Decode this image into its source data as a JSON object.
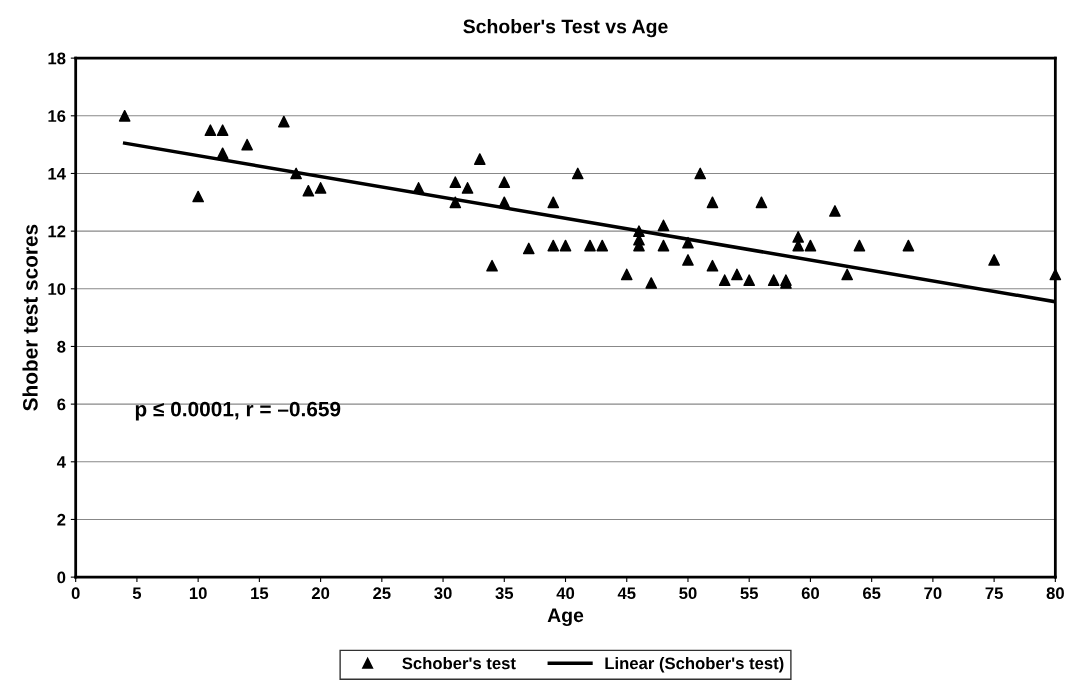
{
  "chart_data": {
    "type": "scatter",
    "title": "Schober's Test vs Age",
    "xlabel": "Age",
    "ylabel": "Shober test scores",
    "series": [
      {
        "name": "Schober's test",
        "color": "#000000",
        "marker": "triangle",
        "x": [
          4,
          10,
          11,
          12,
          12,
          14,
          17,
          18,
          19,
          20,
          28,
          31,
          31,
          32,
          33,
          34,
          35,
          35,
          37,
          39,
          39,
          40,
          41,
          42,
          43,
          45,
          46,
          46,
          46,
          47,
          48,
          48,
          50,
          50,
          51,
          52,
          52,
          53,
          54,
          55,
          56,
          57,
          58,
          58,
          59,
          59,
          60,
          62,
          63,
          64,
          68,
          75,
          80
        ],
        "values": [
          16,
          13.2,
          15.5,
          15.5,
          14.7,
          15,
          15.8,
          14,
          13.4,
          13.5,
          13.5,
          13.7,
          13,
          13.5,
          14.5,
          10.8,
          13.7,
          13,
          11.4,
          13,
          11.5,
          11.5,
          14,
          11.5,
          11.5,
          10.5,
          12,
          11.7,
          11.5,
          10.2,
          12.2,
          11.5,
          11.6,
          11,
          14,
          13,
          10.8,
          10.3,
          10.5,
          10.3,
          13,
          10.3,
          10.3,
          10.2,
          11.8,
          11.5,
          11.5,
          12.7,
          10.5,
          11.5,
          11.5,
          11,
          10.5
        ]
      },
      {
        "name": "Linear (Schober's test)",
        "type": "line",
        "color": "#000000",
        "marker": "none",
        "line_style": "solid",
        "x": [
          4,
          80
        ],
        "values": [
          15.05,
          9.55
        ]
      }
    ],
    "annotations": [
      "p ≤ 0.0001, r = –0.659"
    ],
    "xlim": [
      0,
      80
    ],
    "xticks": [
      0,
      5,
      10,
      15,
      20,
      25,
      30,
      35,
      40,
      45,
      50,
      55,
      60,
      65,
      70,
      75,
      80
    ],
    "ylim": [
      0,
      18
    ],
    "yticks": [
      0,
      2,
      4,
      6,
      8,
      10,
      12,
      14,
      16,
      18
    ],
    "grid": "y",
    "legend": "bottom"
  }
}
